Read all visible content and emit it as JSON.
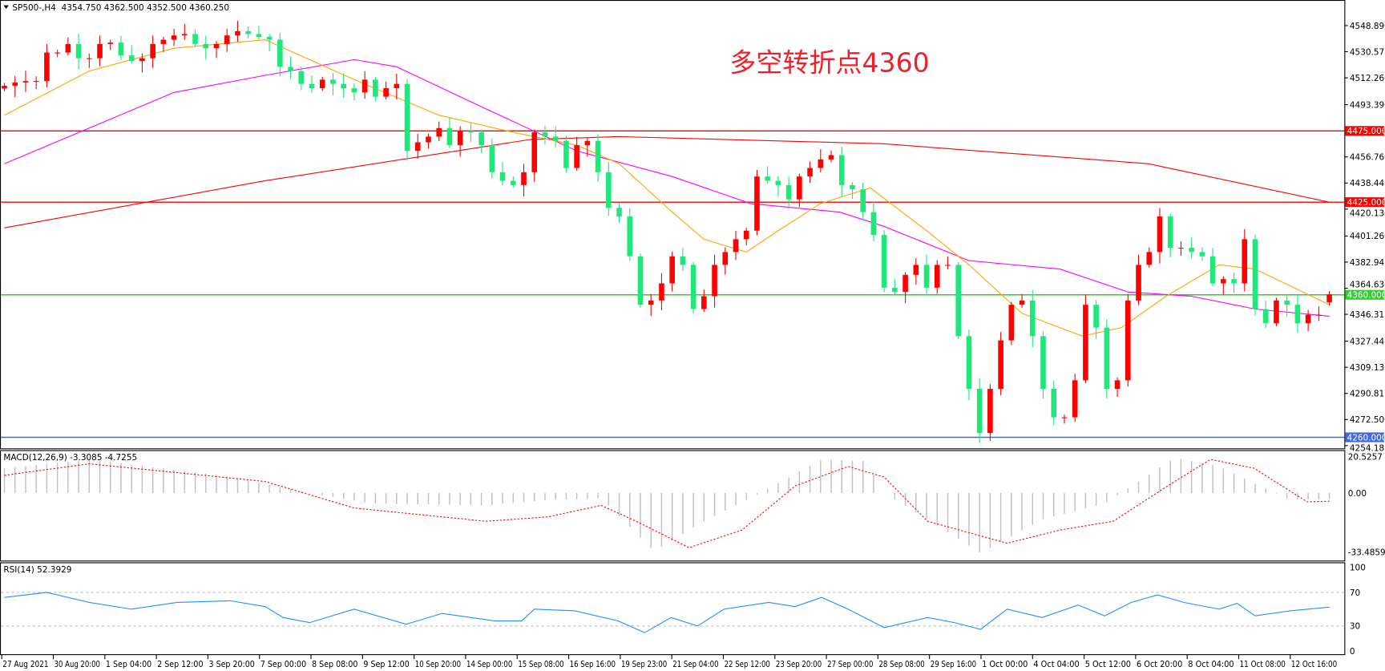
{
  "header": {
    "symbol_line": "SP500-,H4  4354.750 4362.500 4352.500 4360.250",
    "menu_icon": "triangle-down-icon"
  },
  "annotation": "多空转折点4360",
  "macd_label": "MACD(12,26,9) -3.3085 -4.7255",
  "rsi_label": "RSI(14) 52.3929",
  "colors": {
    "bull": "#ff0000",
    "bear": "#1ee87a",
    "ma_fast": "#ffa500",
    "ma_mid": "#ff00ff",
    "ma_slow": "#ff0000",
    "level_red": "#ff0000",
    "level_green": "#32cd32",
    "level_blue": "#4169e1",
    "rsi": "#1e90ff",
    "macd_hist": "#c0c0c0",
    "macd_signal": "#ff0000"
  },
  "chart_data": {
    "type": "candlestick",
    "symbol": "SP500-",
    "timeframe": "H4",
    "last": {
      "open": 4354.75,
      "high": 4362.5,
      "low": 4352.5,
      "close": 4360.25
    },
    "ylim": [
      4254.185,
      4560
    ],
    "price_ticks": [
      "4548.890",
      "4530.575",
      "4512.260",
      "4493.390",
      "4456.760",
      "4438.445",
      "4420.130",
      "4401.260",
      "4382.945",
      "4364.630",
      "4346.315",
      "4327.445",
      "4309.130",
      "4290.815",
      "4272.500",
      "4254.185"
    ],
    "levels": [
      {
        "price": 4475,
        "label": "4475.000",
        "color": "#ff0000"
      },
      {
        "price": 4425,
        "label": "4425.000",
        "color": "#ff0000"
      },
      {
        "price": 4360,
        "label": "4360.000",
        "color": "#32cd32"
      },
      {
        "price": 4260,
        "label": "4260.000",
        "color": "#4169e1"
      }
    ],
    "closes": [
      4506.7,
      4509,
      4510,
      4510,
      4530,
      4530,
      4536,
      4526,
      4526,
      4536,
      4537,
      4528,
      4524,
      4526,
      4536,
      4539,
      4542,
      4543,
      4536,
      4533,
      4536,
      4542,
      4545,
      4543,
      4541,
      4539,
      4520,
      4517,
      4508,
      4505,
      4511,
      4508,
      4505,
      4502,
      4511,
      4499,
      4505,
      4508,
      4461,
      4467,
      4471,
      4477,
      4465,
      4475,
      4474,
      4465,
      4446,
      4440,
      4437,
      4446,
      4474,
      4471,
      4468,
      4449,
      4465,
      4468,
      4446,
      4421,
      4415,
      4387,
      4353,
      4356,
      4368,
      4387,
      4381,
      4350,
      4359,
      4381,
      4390,
      4399,
      4405,
      4443,
      4440,
      4437,
      4427,
      4443,
      4449,
      4455,
      4458,
      4437,
      4434,
      4418,
      4402,
      4365,
      4362,
      4374,
      4381,
      4365,
      4381,
      4381,
      4331,
      4294,
      4263,
      4294,
      4328,
      4353,
      4356,
      4331,
      4294,
      4274,
      4274,
      4300,
      4353,
      4337,
      4294,
      4300,
      4356,
      4381,
      4390,
      4415,
      4393,
      4393,
      4390,
      4387,
      4368,
      4371,
      4368,
      4399,
      4350,
      4340,
      4356,
      4353,
      4340,
      4346,
      4346,
      4360.25
    ],
    "ma_fast": [
      [
        0,
        4486
      ],
      [
        8,
        4517
      ],
      [
        16,
        4533
      ],
      [
        24.6,
        4539
      ],
      [
        33,
        4511
      ],
      [
        41,
        4486
      ],
      [
        48,
        4474
      ],
      [
        54,
        4465
      ],
      [
        58,
        4452
      ],
      [
        63,
        4418
      ],
      [
        66,
        4399
      ],
      [
        70,
        4390
      ],
      [
        73,
        4405
      ],
      [
        77,
        4424
      ],
      [
        81.7,
        4435
      ],
      [
        87,
        4405
      ],
      [
        91,
        4381
      ],
      [
        96,
        4347
      ],
      [
        101.7,
        4331
      ],
      [
        105.4,
        4337
      ],
      [
        109.6,
        4359
      ],
      [
        114.6,
        4381
      ],
      [
        118,
        4378
      ],
      [
        125,
        4353
      ]
    ],
    "ma_mid": [
      [
        0,
        4452
      ],
      [
        8,
        4477
      ],
      [
        16,
        4502
      ],
      [
        24.6,
        4514
      ],
      [
        33,
        4525
      ],
      [
        37,
        4520
      ],
      [
        45,
        4492
      ],
      [
        54,
        4461
      ],
      [
        63,
        4443
      ],
      [
        70.4,
        4424
      ],
      [
        78.8,
        4418
      ],
      [
        83,
        4408
      ],
      [
        91,
        4384
      ],
      [
        99.6,
        4378
      ],
      [
        106,
        4362
      ],
      [
        112,
        4359
      ],
      [
        118,
        4350
      ],
      [
        125,
        4345
      ]
    ],
    "ma_slow": [
      [
        0,
        4407
      ],
      [
        24.6,
        4440
      ],
      [
        49.6,
        4469
      ],
      [
        57.9,
        4471
      ],
      [
        82.9,
        4466
      ],
      [
        107.9,
        4452
      ],
      [
        125,
        4425
      ]
    ],
    "macd": {
      "ylim": [
        -33.4859,
        20.5257
      ],
      "ticks": [
        "20.5257",
        "0.00",
        "-33.4859"
      ],
      "histogram": [
        [
          0,
          14
        ],
        [
          8,
          19
        ],
        [
          20.4,
          10
        ],
        [
          28.8,
          0
        ],
        [
          34.6,
          -6
        ],
        [
          45.4,
          -7
        ],
        [
          51.3,
          -4
        ],
        [
          56.3,
          -3
        ],
        [
          61.3,
          -33
        ],
        [
          66.3,
          -15
        ],
        [
          71.3,
          0
        ],
        [
          77.1,
          19
        ],
        [
          81.3,
          18
        ],
        [
          83,
          0
        ],
        [
          87.9,
          -18
        ],
        [
          92.1,
          -34
        ],
        [
          97.9,
          -15
        ],
        [
          103.8,
          -6
        ],
        [
          107.9,
          10
        ],
        [
          110.4,
          20
        ],
        [
          114.6,
          15
        ],
        [
          118.8,
          3
        ],
        [
          121.3,
          -4
        ],
        [
          125,
          -3.3
        ]
      ],
      "signal": [
        [
          0,
          10
        ],
        [
          8,
          16.5
        ],
        [
          24.6,
          6.5
        ],
        [
          33,
          -8.5
        ],
        [
          45.4,
          -16
        ],
        [
          51.3,
          -13.5
        ],
        [
          56.3,
          -7
        ],
        [
          59.6,
          -16
        ],
        [
          64.6,
          -31
        ],
        [
          69.6,
          -21
        ],
        [
          74.6,
          4
        ],
        [
          79.6,
          15
        ],
        [
          83,
          9
        ],
        [
          87.1,
          -16
        ],
        [
          94.6,
          -28.5
        ],
        [
          99.6,
          -21
        ],
        [
          104.6,
          -16
        ],
        [
          110.4,
          6.5
        ],
        [
          113.8,
          19
        ],
        [
          117.9,
          14
        ],
        [
          122.9,
          -5
        ],
        [
          125,
          -4.7
        ]
      ]
    },
    "rsi": {
      "ylim": [
        0,
        100
      ],
      "ticks": [
        "100",
        "70",
        "30",
        "0"
      ],
      "levels": [
        70,
        30
      ],
      "values": [
        [
          0,
          64
        ],
        [
          4,
          70
        ],
        [
          8,
          58
        ],
        [
          12,
          50
        ],
        [
          16.3,
          58
        ],
        [
          21.3,
          60
        ],
        [
          24.6,
          53
        ],
        [
          26.3,
          40
        ],
        [
          28.8,
          34
        ],
        [
          33,
          50
        ],
        [
          37.9,
          32
        ],
        [
          41.3,
          45
        ],
        [
          46.3,
          36
        ],
        [
          48.8,
          36
        ],
        [
          50,
          50
        ],
        [
          53.8,
          48
        ],
        [
          57.9,
          36
        ],
        [
          60.4,
          22
        ],
        [
          62.9,
          40
        ],
        [
          65.4,
          30
        ],
        [
          67.9,
          50
        ],
        [
          72.1,
          58
        ],
        [
          74.6,
          53
        ],
        [
          77.1,
          64
        ],
        [
          79.6,
          50
        ],
        [
          83,
          28
        ],
        [
          87.1,
          40
        ],
        [
          89.6,
          34
        ],
        [
          92.1,
          26
        ],
        [
          94.6,
          50
        ],
        [
          97.9,
          40
        ],
        [
          101.3,
          55
        ],
        [
          103.8,
          42
        ],
        [
          106.3,
          58
        ],
        [
          108.8,
          67
        ],
        [
          111.3,
          58
        ],
        [
          114.6,
          50
        ],
        [
          116.3,
          57
        ],
        [
          118,
          42
        ],
        [
          121.3,
          48
        ],
        [
          125,
          52.39
        ]
      ]
    },
    "time_labels": [
      "27 Aug 2021",
      "30 Aug 20:00",
      "1 Sep 04:00",
      "2 Sep 12:00",
      "3 Sep 20:00",
      "7 Sep 00:00",
      "8 Sep 08:00",
      "9 Sep 12:00",
      "10 Sep 20:00",
      "14 Sep 00:00",
      "15 Sep 08:00",
      "16 Sep 16:00",
      "19 Sep 23:00",
      "21 Sep 04:00",
      "22 Sep 12:00",
      "23 Sep 20:00",
      "27 Sep 00:00",
      "28 Sep 08:00",
      "29 Sep 16:00",
      "1 Oct 00:00",
      "4 Oct 04:00",
      "5 Oct 12:00",
      "6 Oct 20:00",
      "8 Oct 04:00",
      "11 Oct 08:00",
      "12 Oct 16:00"
    ]
  }
}
